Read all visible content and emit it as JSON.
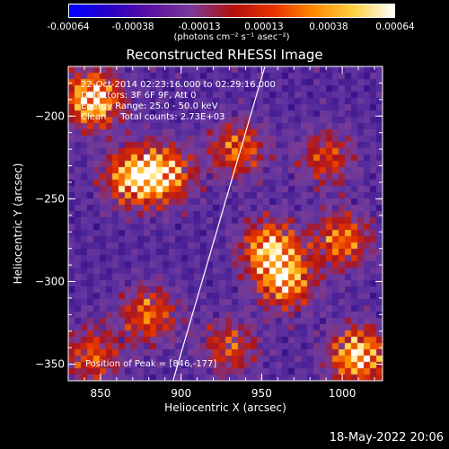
{
  "colorbar": {
    "ticks": [
      "-0.00064",
      "-0.00038",
      "-0.00013",
      "0.00013",
      "0.00038",
      "0.00064"
    ],
    "units": "(photons cm⁻² s⁻¹ asec⁻²)",
    "colors": [
      "#0000ff",
      "#2a00c8",
      "#5a10a0",
      "#7a3a9a",
      "#b01010",
      "#e83000",
      "#ff8800",
      "#ffd040",
      "#ffffff"
    ]
  },
  "annotations": {
    "line1": "22-Oct-2014 02:23:16.000 to 02:29:16.000",
    "line2": "Detectors: 3F 6F 9F, Att 0",
    "line3": "Energy Range: 25.0 - 50.0 keV",
    "line4": "Clean     Total counts: 2.73E+03",
    "peak": "Position of Peak = [846,-177]"
  },
  "footer": {
    "date": "18-May-2022 20:06"
  },
  "chart_data": {
    "type": "heatmap",
    "title": "Reconstructed RHESSI Image",
    "xlabel": "Heliocentric X (arcsec)",
    "ylabel": "Heliocentric Y (arcsec)",
    "xlim": [
      830,
      1025
    ],
    "ylim": [
      -360,
      -170
    ],
    "xticks": [
      850,
      900,
      950,
      1000
    ],
    "xtick_labels": [
      "850",
      "900",
      "950",
      "1000"
    ],
    "yticks": [
      -200,
      -250,
      -300,
      -350
    ],
    "ytick_labels": [
      "−200",
      "−250",
      "−300",
      "−350"
    ],
    "colorbar_range": [
      -0.00064,
      0.00064
    ],
    "limb_line": [
      [
        895,
        -360
      ],
      [
        952,
        -170
      ]
    ],
    "hotspots": [
      {
        "x": 845,
        "y": -190,
        "level": 0.9
      },
      {
        "x": 870,
        "y": -237,
        "level": 0.75
      },
      {
        "x": 890,
        "y": -235,
        "level": 0.7
      },
      {
        "x": 935,
        "y": -220,
        "level": 0.55
      },
      {
        "x": 955,
        "y": -280,
        "level": 0.75
      },
      {
        "x": 965,
        "y": -300,
        "level": 0.7
      },
      {
        "x": 1000,
        "y": -275,
        "level": 0.6
      },
      {
        "x": 990,
        "y": -225,
        "level": 0.45
      },
      {
        "x": 1010,
        "y": -345,
        "level": 0.85
      },
      {
        "x": 880,
        "y": -320,
        "level": 0.55
      },
      {
        "x": 845,
        "y": -345,
        "level": 0.5
      },
      {
        "x": 930,
        "y": -340,
        "level": 0.45
      }
    ]
  }
}
